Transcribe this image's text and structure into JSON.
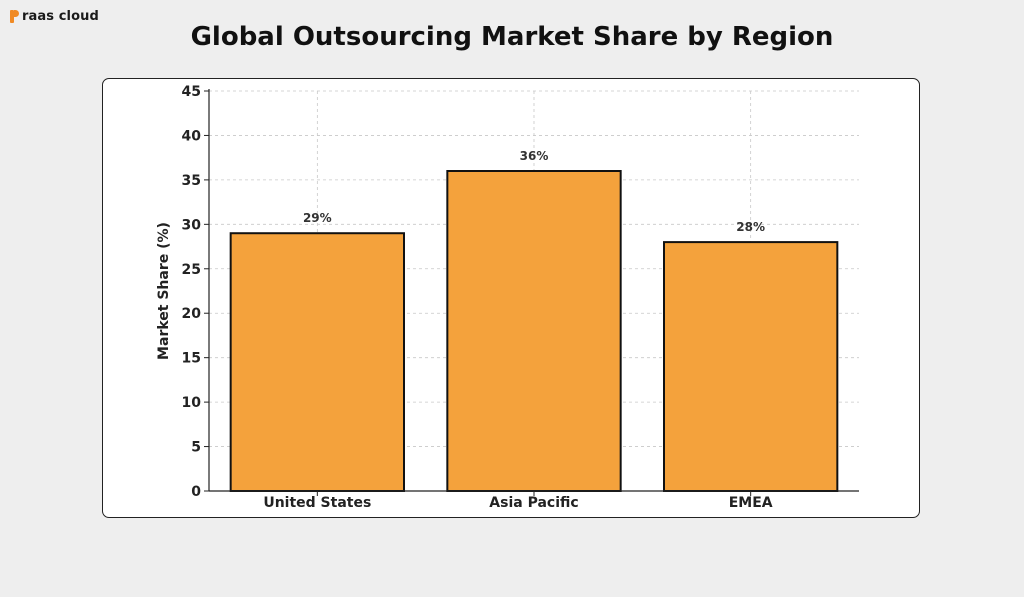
{
  "brand": {
    "name": "raas cloud",
    "mark_color": "#f08a24"
  },
  "chart_data": {
    "type": "bar",
    "title": "Global Outsourcing Market Share by Region",
    "xlabel": "",
    "ylabel": "Market Share (%)",
    "categories": [
      "United States",
      "Asia Pacific",
      "EMEA"
    ],
    "values": [
      29,
      36,
      28
    ],
    "data_labels": [
      "29%",
      "36%",
      "28%"
    ],
    "ylim": [
      0,
      45
    ],
    "yticks": [
      0,
      5,
      10,
      15,
      20,
      25,
      30,
      35,
      40,
      45
    ],
    "grid": true,
    "legend": "none",
    "bar_color": "#f4a23c",
    "bar_edge_color": "#111111"
  }
}
